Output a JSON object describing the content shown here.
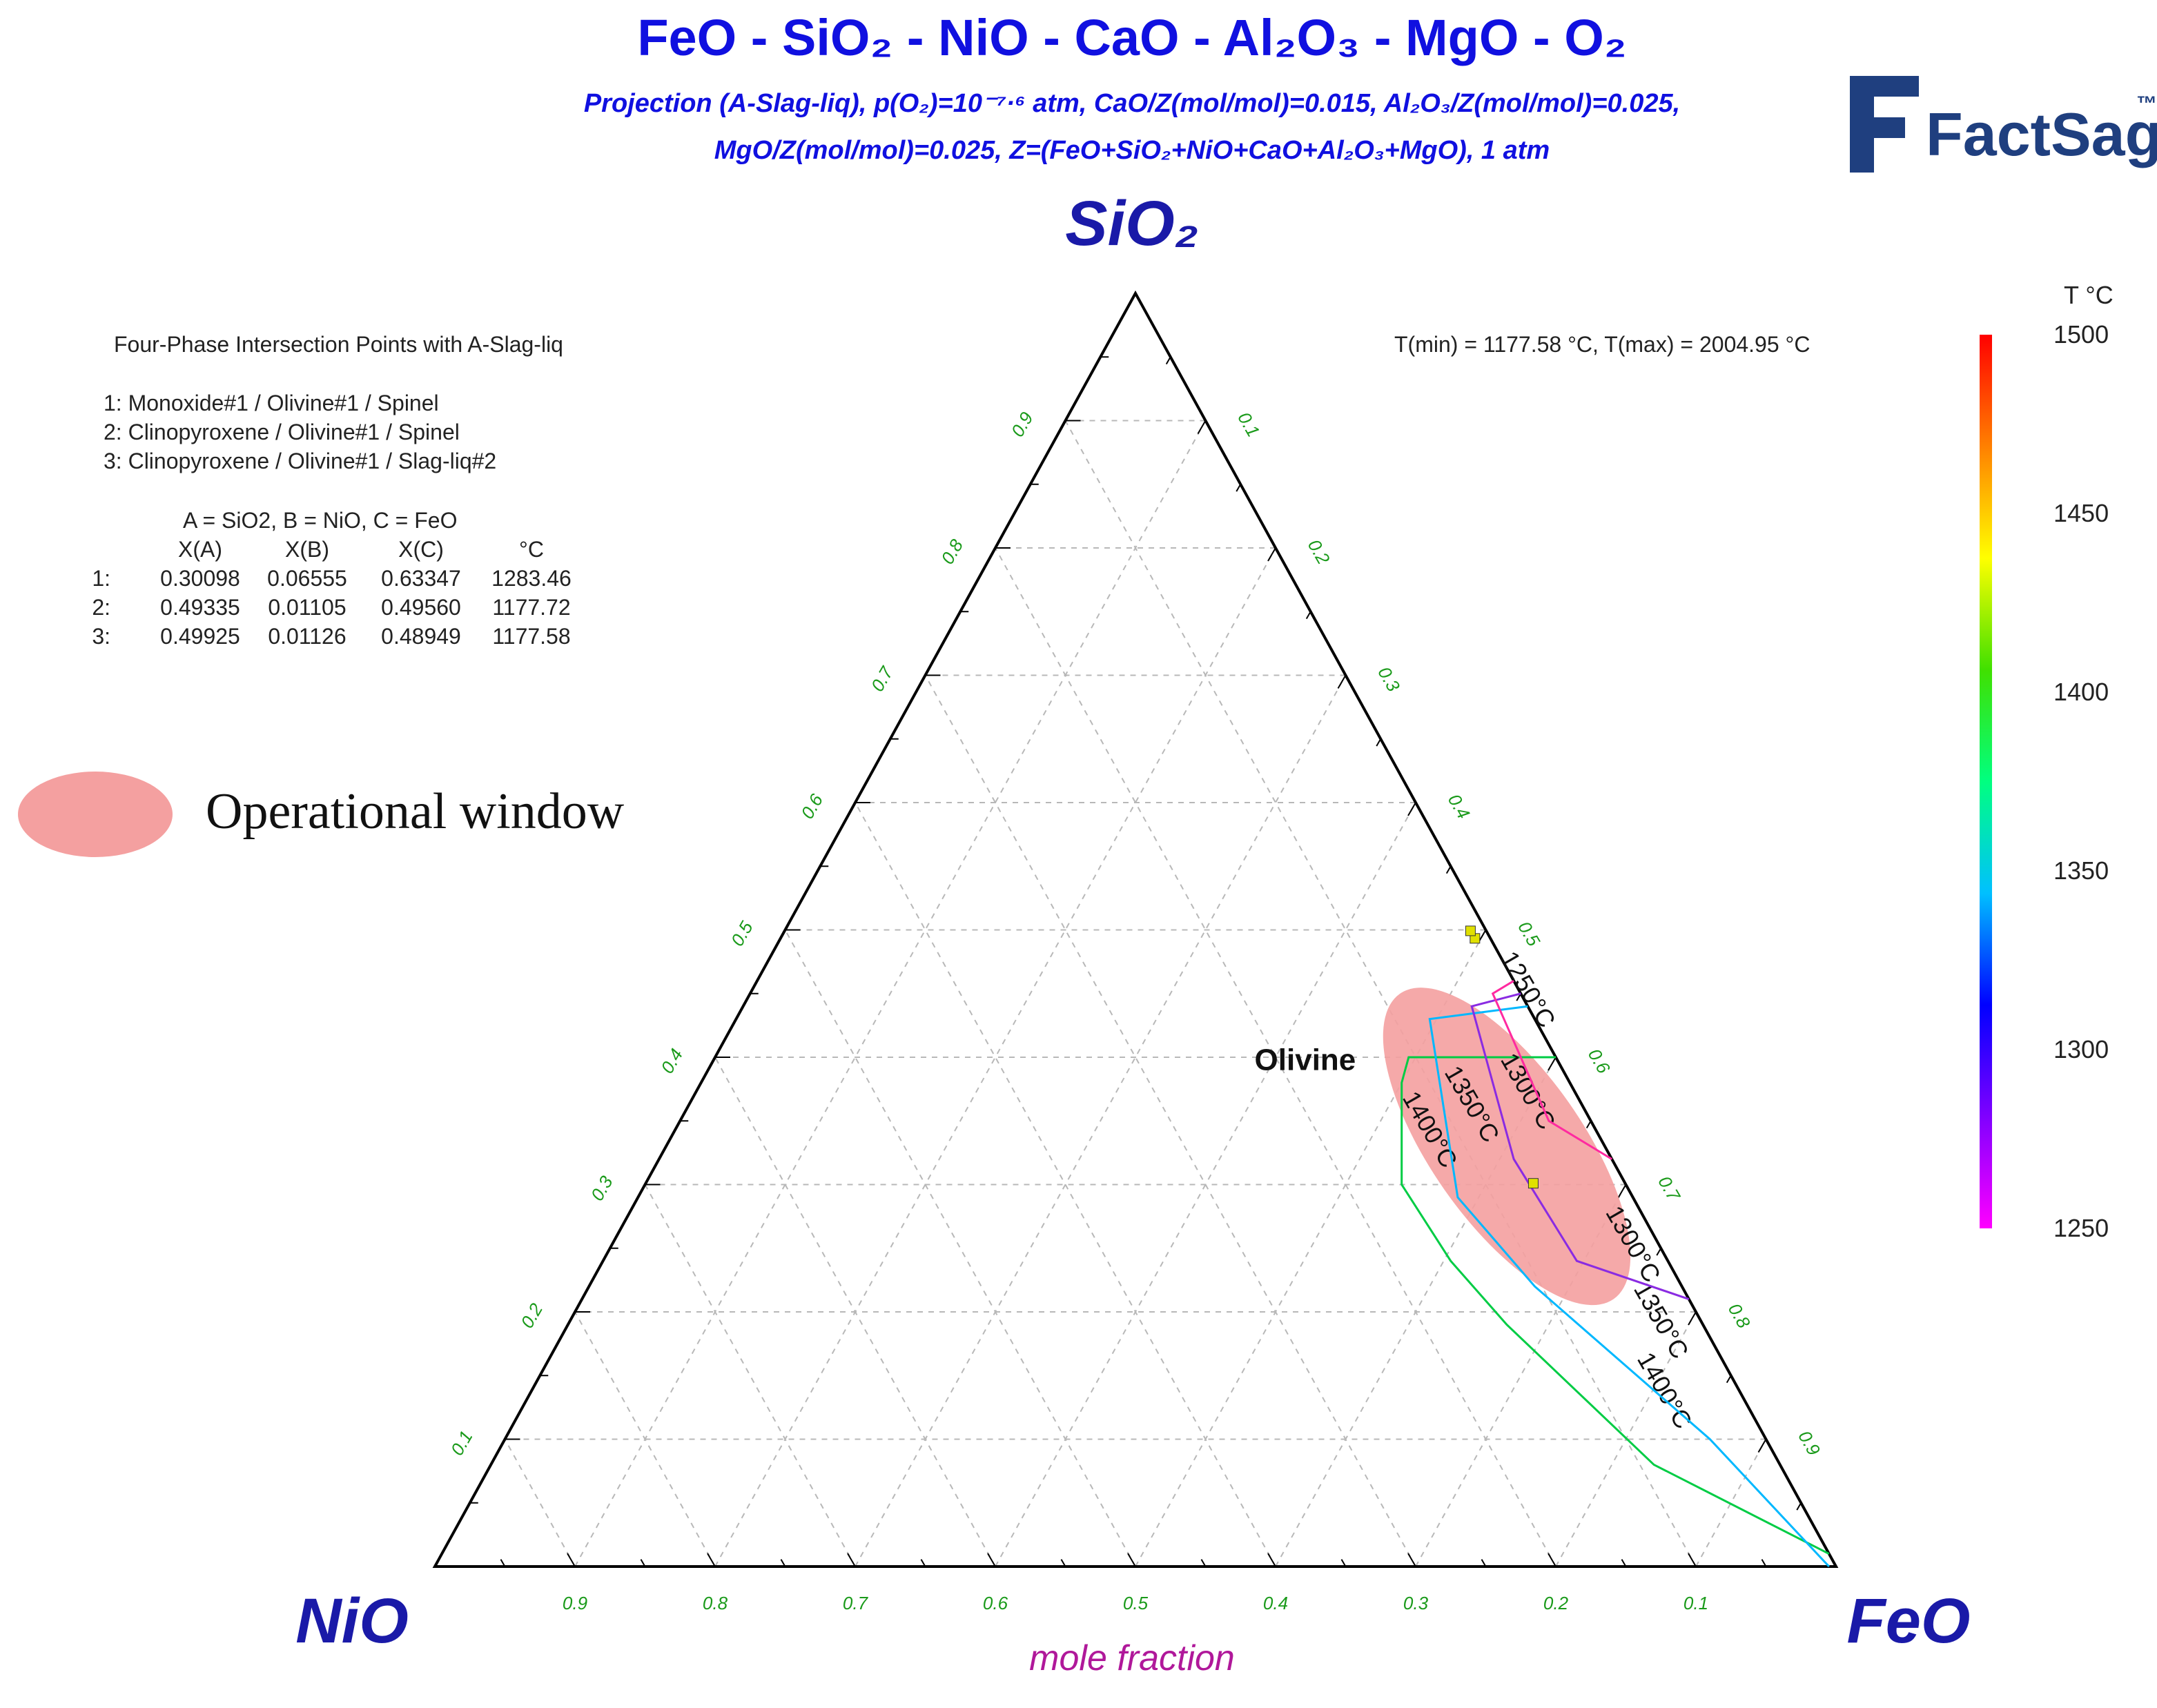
{
  "title": {
    "main": "FeO - SiO₂ - NiO - CaO - Al₂O₃ - MgO - O₂",
    "subtitle_line1": "Projection (A-Slag-liq), p(O₂)=10⁻⁷·⁶ atm, CaO/Z(mol/mol)=0.015, Al₂O₃/Z(mol/mol)=0.025,",
    "subtitle_line2": "MgO/Z(mol/mol)=0.025, Z=(FeO+SiO₂+NiO+CaO+Al₂O₃+MgO), 1 atm"
  },
  "logo": {
    "text": "FactSage",
    "tm": "™",
    "color": "#1f3f7f"
  },
  "info": {
    "heading": "Four-Phase Intersection Points with A-Slag-liq",
    "points": [
      "1:   Monoxide#1 / Olivine#1 / Spinel",
      "2:   Clinopyroxene / Olivine#1 / Spinel",
      "3:   Clinopyroxene / Olivine#1 / Slag-liq#2"
    ],
    "mapping": "A = SiO2,  B = NiO,  C = FeO",
    "table_header": [
      "X(A)",
      "X(B)",
      "X(C)",
      "°C"
    ],
    "table_rows": [
      [
        "1:",
        "0.30098",
        "0.06555",
        "0.63347",
        "1283.46"
      ],
      [
        "2:",
        "0.49335",
        "0.01105",
        "0.49560",
        "1177.72"
      ],
      [
        "3:",
        "0.49925",
        "0.01126",
        "0.48949",
        "1177.58"
      ]
    ],
    "trange": "T(min) = 1177.58 °C, T(max) = 2004.95 °C"
  },
  "legend": {
    "label": "Operational window",
    "color": "#f4a0a0"
  },
  "phase_label": "Olivine",
  "colorbar": {
    "unit": "T °C",
    "ticks": [
      "1500",
      "1450",
      "1400",
      "1350",
      "1300",
      "1250"
    ],
    "min": 1250,
    "max": 1500,
    "colors": [
      "#ff00ff",
      "#8000ff",
      "#0000ff",
      "#00c0ff",
      "#00ff80",
      "#40e000",
      "#ffff00",
      "#ff8000",
      "#ff0000"
    ]
  },
  "chart_data": {
    "type": "ternary",
    "vertices": {
      "top": "SiO₂",
      "left": "NiO",
      "right": "FeO"
    },
    "axis_label": "mole fraction",
    "ticks": [
      "0.1",
      "0.2",
      "0.3",
      "0.4",
      "0.5",
      "0.6",
      "0.7",
      "0.8",
      "0.9"
    ],
    "intersection_points": [
      {
        "id": 1,
        "SiO2": 0.30098,
        "NiO": 0.06555,
        "FeO": 0.63347,
        "T": 1283.46
      },
      {
        "id": 2,
        "SiO2": 0.49335,
        "NiO": 0.01105,
        "FeO": 0.4956,
        "T": 1177.72
      },
      {
        "id": 3,
        "SiO2": 0.49925,
        "NiO": 0.01126,
        "FeO": 0.48949,
        "T": 1177.58
      }
    ],
    "isotherms": [
      {
        "name": "1400°C",
        "color": "#00cc44",
        "points": [
          [
            0.4,
            0.0
          ],
          [
            0.4,
            0.105
          ],
          [
            0.38,
            0.12
          ],
          [
            0.3,
            0.16
          ],
          [
            0.24,
            0.155
          ],
          [
            0.19,
            0.14
          ],
          [
            0.08,
            0.09
          ],
          [
            0.01,
            0.0
          ]
        ],
        "labels": [
          {
            "text": "1400°C",
            "SiO2": 0.34,
            "NiO": 0.125
          },
          {
            "text": "1400°C",
            "SiO2": 0.135,
            "NiO": 0.06
          }
        ]
      },
      {
        "name": "1350°C",
        "color": "#00b8ff",
        "points": [
          [
            0.44,
            0.0
          ],
          [
            0.43,
            0.075
          ],
          [
            0.36,
            0.1
          ],
          [
            0.29,
            0.125
          ],
          [
            0.22,
            0.105
          ],
          [
            0.1,
            0.04
          ],
          [
            0.0,
            0.005
          ]
        ],
        "labels": [
          {
            "text": "1350°C",
            "SiO2": 0.36,
            "NiO": 0.085
          },
          {
            "text": "1350°C",
            "SiO2": 0.19,
            "NiO": 0.035
          }
        ]
      },
      {
        "name": "1300°C",
        "color": "#8a2be2",
        "points": [
          [
            0.45,
            0.0
          ],
          [
            0.44,
            0.04
          ],
          [
            0.32,
            0.07
          ],
          [
            0.24,
            0.065
          ],
          [
            0.21,
            0.0
          ]
        ],
        "labels": [
          {
            "text": "1300°C",
            "SiO2": 0.37,
            "NiO": 0.04
          },
          {
            "text": "1300°C",
            "SiO2": 0.25,
            "NiO": 0.025
          }
        ]
      },
      {
        "name": "1250°C",
        "color": "#ff2aa0",
        "points": [
          [
            0.46,
            0.0
          ],
          [
            0.45,
            0.02
          ],
          [
            0.35,
            0.03
          ],
          [
            0.32,
            0.0
          ]
        ],
        "labels": [
          {
            "text": "1250°C",
            "SiO2": 0.45,
            "NiO": 0.0
          }
        ]
      }
    ],
    "olivine_label": {
      "SiO2": 0.39,
      "NiO": 0.22
    },
    "operational_window": {
      "center_SiO2": 0.33,
      "center_NiO": 0.07,
      "description": "ellipse"
    }
  }
}
